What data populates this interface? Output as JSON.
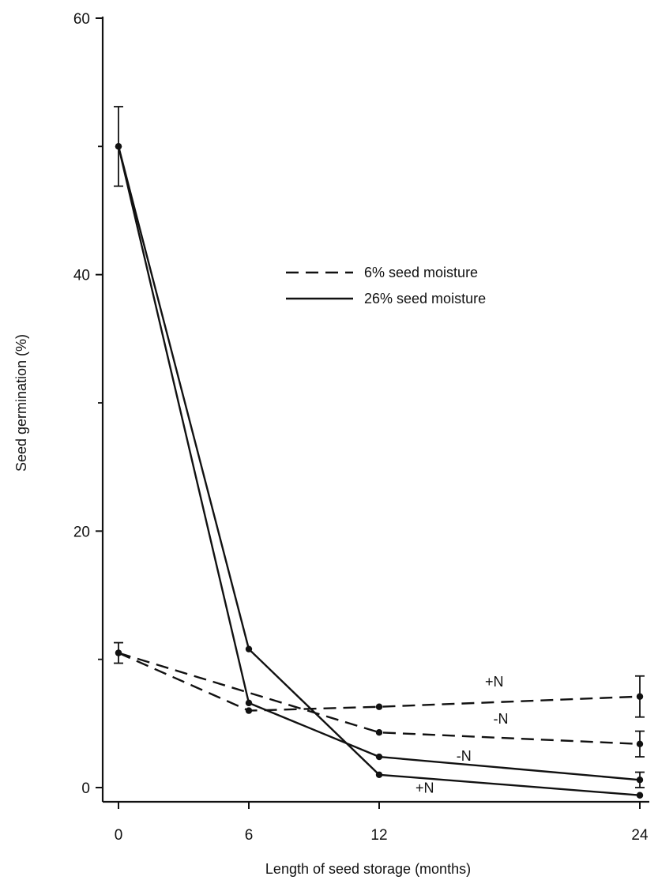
{
  "chart_data": {
    "type": "line",
    "xlabel": "Length of seed storage (months)",
    "ylabel": "Seed germination (%)",
    "xlim": [
      0,
      24
    ],
    "ylim": [
      0,
      60
    ],
    "xticks": [
      0,
      6,
      12,
      24
    ],
    "yticks": [
      0,
      20,
      40,
      60
    ],
    "y_minor_ticks": [
      10,
      30,
      50
    ],
    "grid": false,
    "legend": {
      "placement": "center-right",
      "entries": [
        {
          "label": "6% seed moisture",
          "style": "dashed"
        },
        {
          "label": "26% seed moisture",
          "style": "solid"
        }
      ]
    },
    "series": [
      {
        "moisture": "6% seed moisture",
        "label": "+N",
        "style": "dashed",
        "points": [
          {
            "x": 0,
            "y": 10.5,
            "error": 0.8
          },
          {
            "x": 6,
            "y": 6.0
          },
          {
            "x": 12,
            "y": 6.3
          },
          {
            "x": 24,
            "y": 7.1,
            "error": 1.6
          }
        ]
      },
      {
        "moisture": "6% seed moisture",
        "label": "-N",
        "style": "dashed",
        "points": [
          {
            "x": 0,
            "y": 10.5
          },
          {
            "x": 12,
            "y": 4.3
          },
          {
            "x": 24,
            "y": 3.4,
            "error": 1.0
          }
        ]
      },
      {
        "moisture": "26% seed moisture",
        "label": "-N",
        "style": "solid",
        "points": [
          {
            "x": 0,
            "y": 50.0
          },
          {
            "x": 6,
            "y": 10.8
          },
          {
            "x": 12,
            "y": 1.0
          },
          {
            "x": 24,
            "y": -0.6
          }
        ]
      },
      {
        "moisture": "26% seed moisture",
        "label": "+N",
        "style": "solid",
        "points": [
          {
            "x": 0,
            "y": 50.0,
            "error": 3.1
          },
          {
            "x": 6,
            "y": 6.6
          },
          {
            "x": 12,
            "y": 2.4
          },
          {
            "x": 24,
            "y": 0.6,
            "error": 0.6
          }
        ]
      }
    ],
    "series_labels": [
      {
        "text": "+N",
        "x": 17.3,
        "y": 7.9
      },
      {
        "text": "-N",
        "x": 17.6,
        "y": 5.0
      },
      {
        "text": "-N",
        "x": 15.9,
        "y": 2.1
      },
      {
        "text": "+N",
        "x": 14.1,
        "y": -0.4
      }
    ]
  }
}
